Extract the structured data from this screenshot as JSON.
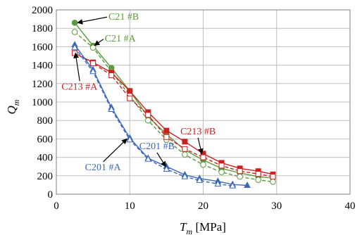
{
  "chart_data": {
    "type": "line",
    "xlabel_main": "T",
    "xlabel_sub": "m",
    "xlabel_unit": " [MPa]",
    "ylabel_main": "Q",
    "ylabel_sub": "m",
    "xlim": [
      0,
      40
    ],
    "ylim": [
      0,
      2000
    ],
    "xticks": [
      0,
      10,
      20,
      30,
      40
    ],
    "yticks": [
      0,
      200,
      400,
      600,
      800,
      1000,
      1200,
      1400,
      1600,
      1800,
      2000
    ],
    "grid": true,
    "series": [
      {
        "name": "C21 #B",
        "color": "#5b9a3c",
        "marker": "circle",
        "filled": true,
        "dashed": false,
        "x": [
          2.5,
          5,
          7.5,
          10,
          12.5,
          15,
          17.5,
          20,
          22.5,
          25,
          27.5,
          29.5
        ],
        "y": [
          1860,
          1610,
          1370,
          1120,
          840,
          650,
          480,
          370,
          280,
          230,
          190,
          175
        ]
      },
      {
        "name": "C21 #A",
        "color": "#5b9a3c",
        "marker": "circle",
        "filled": false,
        "dashed": true,
        "x": [
          2.5,
          5,
          7.5,
          10,
          12.5,
          15,
          17.5,
          20,
          22.5,
          25,
          27.5,
          29.5
        ],
        "y": [
          1760,
          1590,
          1330,
          1070,
          800,
          590,
          430,
          320,
          240,
          190,
          155,
          135
        ]
      },
      {
        "name": "C213 #B",
        "color": "#cc2020",
        "marker": "square",
        "filled": true,
        "dashed": false,
        "x": [
          2.5,
          5,
          7.5,
          10,
          12.5,
          15,
          17.5,
          20,
          22.5,
          25,
          27.5,
          29.5
        ],
        "y": [
          1530,
          1430,
          1320,
          1120,
          890,
          690,
          570,
          440,
          340,
          280,
          250,
          215
        ]
      },
      {
        "name": "C213 #A",
        "color": "#cc2020",
        "marker": "square",
        "filled": false,
        "dashed": true,
        "x": [
          2.5,
          5,
          7.5,
          10,
          12.5,
          15,
          17.5,
          20,
          22.5,
          25,
          27.5,
          29.5
        ],
        "y": [
          1530,
          1420,
          1290,
          1040,
          860,
          620,
          490,
          400,
          310,
          250,
          220,
          190
        ]
      },
      {
        "name": "C201 #B",
        "color": "#3b68b8",
        "marker": "triangle",
        "filled": true,
        "dashed": false,
        "x": [
          2.5,
          5,
          7.5,
          10,
          12.5,
          15,
          17.5,
          19.5,
          22,
          24,
          26
        ],
        "y": [
          1620,
          1350,
          940,
          610,
          390,
          300,
          210,
          170,
          140,
          105,
          95
        ]
      },
      {
        "name": "C201 #A",
        "color": "#3b68b8",
        "marker": "triangle",
        "filled": false,
        "dashed": true,
        "x": [
          2.5,
          5,
          7.5,
          10,
          12.5,
          15,
          17.5,
          19.5,
          22,
          24
        ],
        "y": [
          1590,
          1330,
          920,
          590,
          380,
          270,
          190,
          150,
          110,
          90
        ]
      }
    ],
    "annotations": [
      {
        "text": "C21 #B",
        "color": "#5b9a3c",
        "data_x": 7.1,
        "data_y": 1895,
        "anchor": "start",
        "arrow_to": [
          2.9,
          1860
        ]
      },
      {
        "text": "C21 #A",
        "color": "#5b9a3c",
        "data_x": 6.6,
        "data_y": 1655,
        "anchor": "start",
        "arrow_to": [
          5.2,
          1615
        ]
      },
      {
        "text": "C213 #A",
        "color": "#cc2020",
        "data_x": 0.7,
        "data_y": 1135,
        "anchor": "start",
        "arrow_to": [
          2.6,
          1530
        ]
      },
      {
        "text": "C213 #B",
        "color": "#cc2020",
        "data_x": 19.3,
        "data_y": 650,
        "anchor": "middle",
        "arrow_to": [
          19.8,
          440
        ]
      },
      {
        "text": "C201 #B",
        "color": "#3b68b8",
        "data_x": 11.3,
        "data_y": 490,
        "anchor": "start",
        "arrow_to": [
          14.9,
          300
        ]
      },
      {
        "text": "C201 #A",
        "color": "#3b68b8",
        "data_x": 3.9,
        "data_y": 260,
        "anchor": "start",
        "arrow_to": [
          9.6,
          600
        ]
      }
    ]
  }
}
